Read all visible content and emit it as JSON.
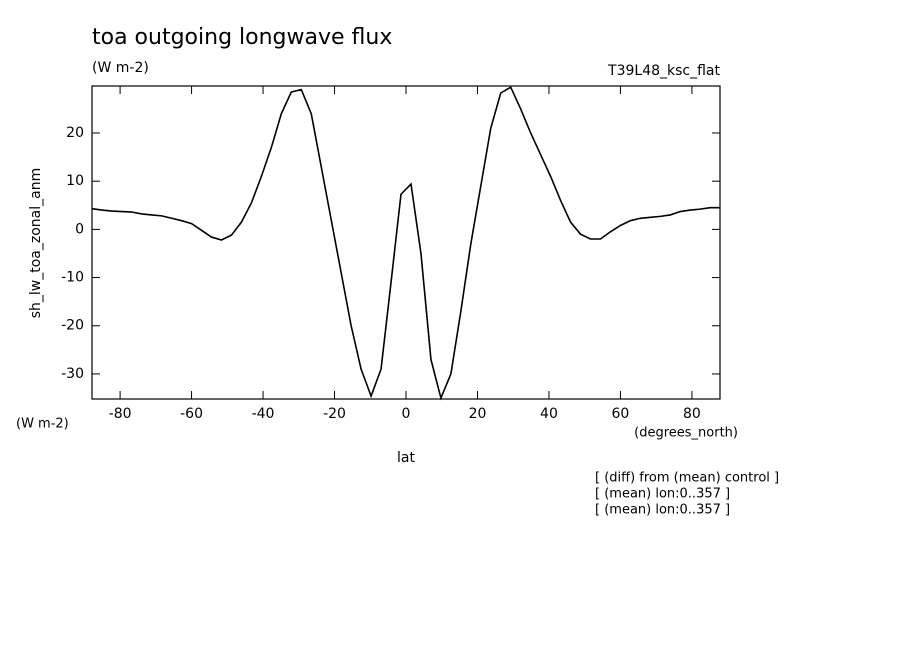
{
  "chart_data": {
    "type": "line",
    "title": "toa outgoing longwave flux",
    "subtitle": "(W m-2)",
    "run_label": "T39L48_ksc_flat",
    "y_label": "sh_lw_toa_zonal_anm",
    "y_units": "(W m-2)",
    "x_label": "lat",
    "x_units": "(degrees_north)",
    "notes": [
      "[ (diff) from (mean) control ]",
      "[ (mean) lon:0..357 ]",
      "[ (mean) lon:0..357 ]"
    ],
    "x": [
      -87.86,
      -85.1,
      -82.31,
      -79.53,
      -76.74,
      -73.95,
      -71.16,
      -68.37,
      -65.58,
      -62.79,
      -60.0,
      -57.21,
      -54.42,
      -51.63,
      -48.84,
      -46.05,
      -43.25,
      -40.46,
      -37.67,
      -34.88,
      -32.09,
      -29.3,
      -26.51,
      -23.72,
      -20.93,
      -18.14,
      -15.35,
      -12.56,
      -9.77,
      -6.98,
      -4.19,
      -1.4,
      1.4,
      4.19,
      6.98,
      9.77,
      12.56,
      15.35,
      18.14,
      20.93,
      23.72,
      26.51,
      29.3,
      32.09,
      34.88,
      37.67,
      40.46,
      43.25,
      46.05,
      48.84,
      51.63,
      54.42,
      57.21,
      60.0,
      62.79,
      65.58,
      68.37,
      71.16,
      73.95,
      76.74,
      79.53,
      82.31,
      85.1,
      87.86
    ],
    "series": [
      {
        "name": "sh_lw_toa_zonal_anm",
        "color": "#000000",
        "values": [
          4.3,
          4.0,
          3.8,
          3.7,
          3.6,
          3.2,
          3.0,
          2.8,
          2.3,
          1.8,
          1.2,
          -0.2,
          -1.6,
          -2.2,
          -1.2,
          1.5,
          5.5,
          11,
          17,
          24,
          28.5,
          29,
          24,
          13,
          2,
          -9,
          -20,
          -29,
          -34.6,
          -29,
          -11,
          7.3,
          9.4,
          -5,
          -27,
          -35,
          -30,
          -17,
          -3,
          9,
          21,
          28.3,
          29.5,
          25,
          20,
          15.5,
          11,
          6,
          1.5,
          -1,
          -2,
          -2,
          -0.5,
          0.8,
          1.8,
          2.3,
          2.5,
          2.7,
          3.0,
          3.7,
          4.0,
          4.2,
          4.5,
          4.5
        ]
      }
    ],
    "xlim": [
      -87.86,
      87.86
    ],
    "ylim": [
      -35.2,
      29.75
    ],
    "xticks": [
      -80,
      -60,
      -40,
      -20,
      0,
      20,
      40,
      60,
      80
    ],
    "yticks": [
      -30,
      -20,
      -10,
      0,
      10,
      20
    ]
  }
}
